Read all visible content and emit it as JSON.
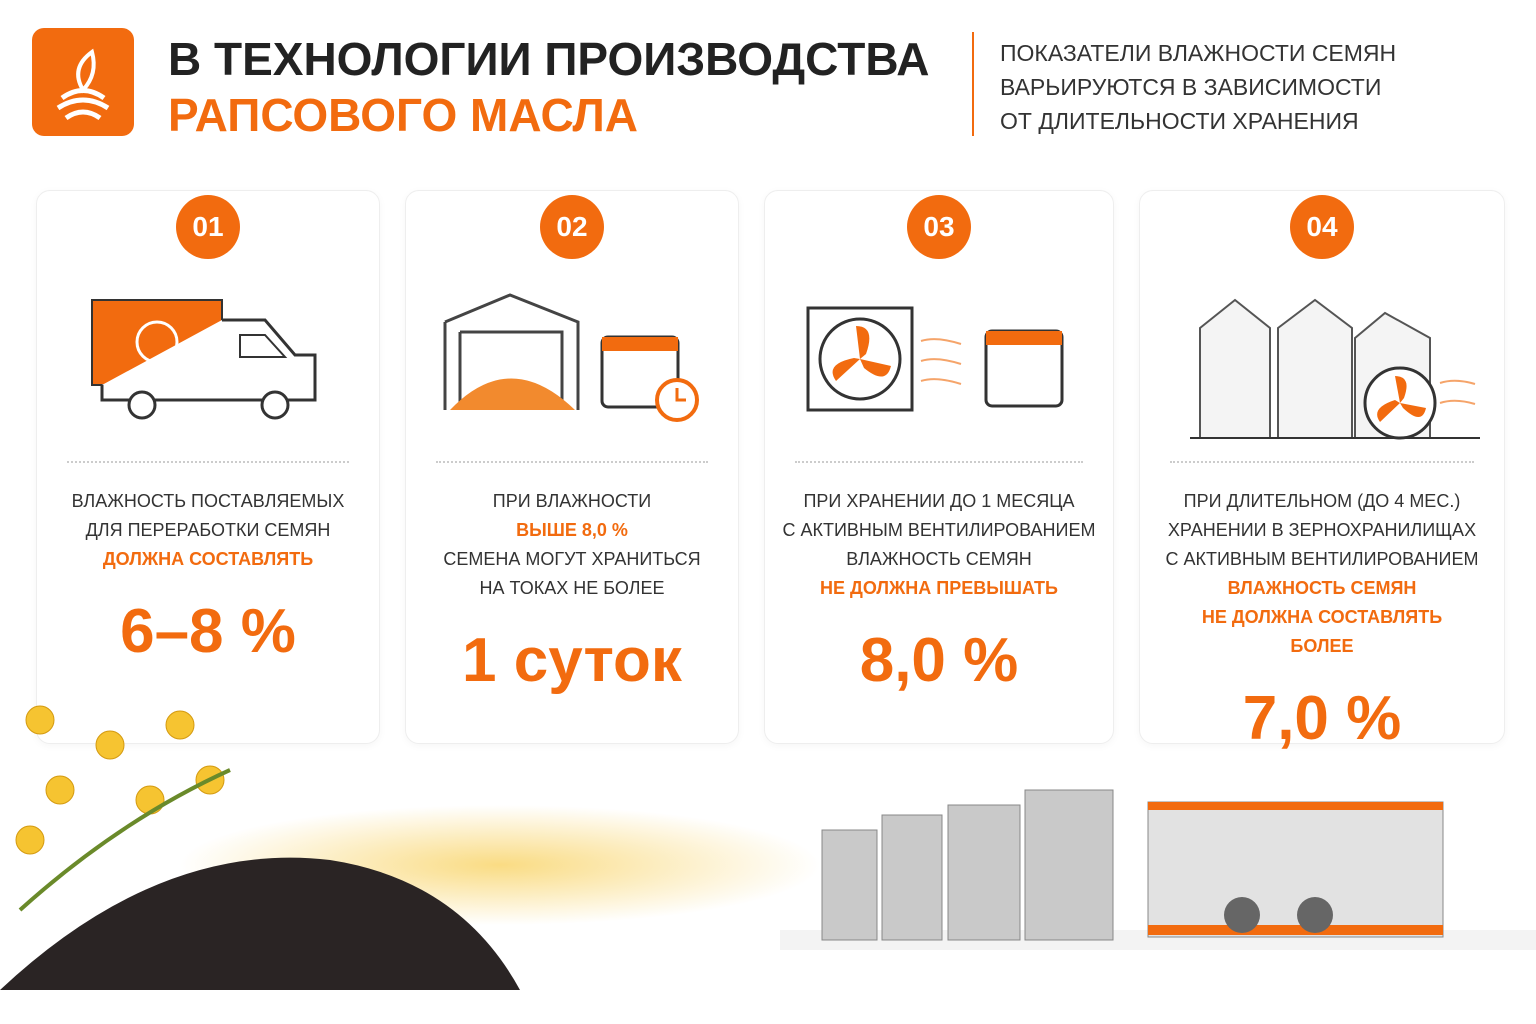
{
  "header": {
    "title_line1": "В ТЕХНОЛОГИИ ПРОИЗВОДСТВА",
    "title_line2": "РАПСОВОГО МАСЛА",
    "note": [
      "ПОКАЗАТЕЛИ ВЛАЖНОСТИ СЕМЯН",
      "ВАРЬИРУЮТСЯ В ЗАВИСИМОСТИ",
      "ОТ ДЛИТЕЛЬНОСТИ ХРАНЕНИЯ"
    ]
  },
  "cards": [
    {
      "number": "01",
      "lines": [
        {
          "text": "ВЛАЖНОСТЬ ПОСТАВЛЯЕМЫХ",
          "accent": false
        },
        {
          "text": "ДЛЯ ПЕРЕРАБОТКИ СЕМЯН",
          "accent": false
        },
        {
          "text": "ДОЛЖНА СОСТАВЛЯТЬ",
          "accent": true
        }
      ],
      "value": "6–8 %"
    },
    {
      "number": "02",
      "lines": [
        {
          "text": "ПРИ ВЛАЖНОСТИ",
          "accent": false
        },
        {
          "text": "ВЫШЕ 8,0 %",
          "accent": true
        },
        {
          "text": "СЕМЕНА МОГУТ ХРАНИТЬСЯ",
          "accent": false
        },
        {
          "text": "НА ТОКАХ НЕ БОЛЕЕ",
          "accent": false
        }
      ],
      "value": "1 суток"
    },
    {
      "number": "03",
      "lines": [
        {
          "text": "ПРИ ХРАНЕНИИ ДО 1 МЕСЯЦА",
          "accent": false
        },
        {
          "text": "С АКТИВНЫМ ВЕНТИЛИРОВАНИЕМ",
          "accent": false
        },
        {
          "text": "ВЛАЖНОСТЬ СЕМЯН",
          "accent": false
        },
        {
          "text": "НЕ ДОЛЖНА ПРЕВЫШАТЬ",
          "accent": true
        }
      ],
      "value": "8,0 %"
    },
    {
      "number": "04",
      "lines": [
        {
          "text": "ПРИ ДЛИТЕЛЬНОМ (ДО 4 МЕС.)",
          "accent": false
        },
        {
          "text": "ХРАНЕНИИ В ЗЕРНОХРАНИЛИЩАХ",
          "accent": false
        },
        {
          "text": "С АКТИВНЫМ ВЕНТИЛИРОВАНИЕМ",
          "accent": false
        },
        {
          "text": "ВЛАЖНОСТЬ СЕМЯН",
          "accent": true
        },
        {
          "text": "НЕ ДОЛЖНА СОСТАВЛЯТЬ",
          "accent": true
        },
        {
          "text": "БОЛЕЕ",
          "accent": true
        }
      ],
      "value": "7,0 %"
    }
  ]
}
